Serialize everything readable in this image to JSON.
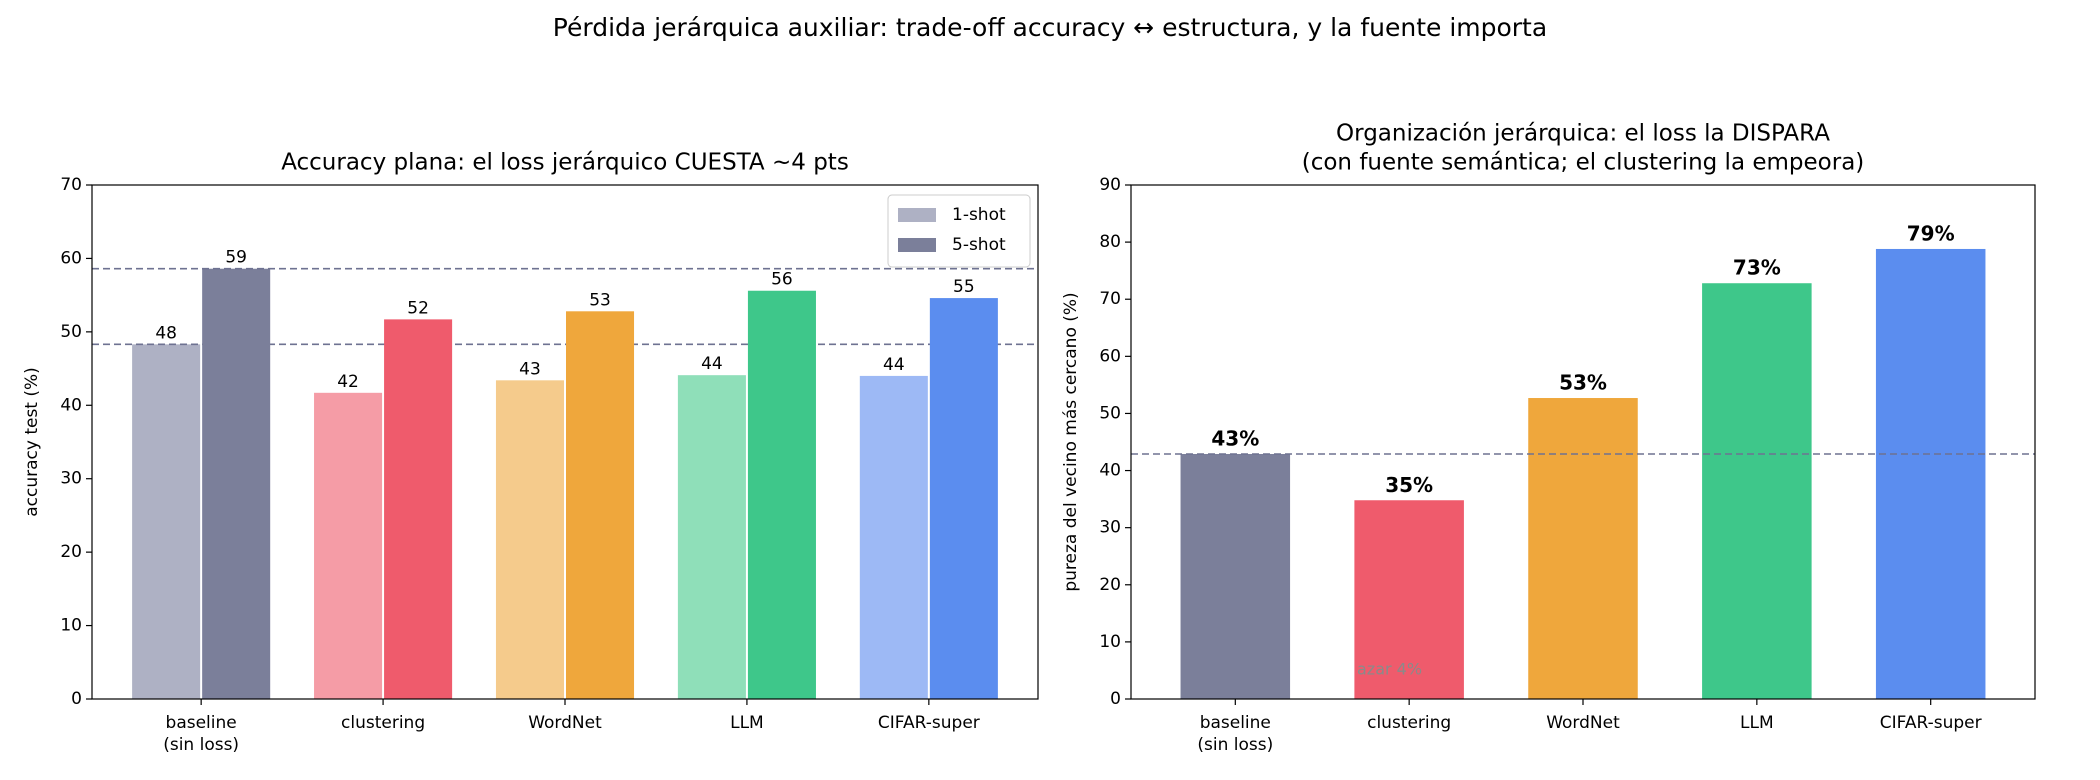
{
  "title": "Pérdida jerárquica auxiliar: trade-off accuracy ↔ estructura, y la fuente importa",
  "chart_data": [
    {
      "type": "grouped_bar",
      "title": [
        "Accuracy plana: el loss jerárquico CUESTA ~4 pts"
      ],
      "ylabel": "accuracy test (%)",
      "categories": [
        [
          "baseline",
          "(sin loss)"
        ],
        [
          "clustering"
        ],
        [
          "WordNet"
        ],
        [
          "LLM"
        ],
        [
          "CIFAR-super"
        ]
      ],
      "series": [
        {
          "name": "1-shot",
          "color": "#aeb1c4",
          "colors": [
            "#aeb1c4",
            "#f59ca6",
            "#f5cb8c",
            "#8fdfb9",
            "#9db9f5"
          ],
          "values": [
            48.3,
            41.7,
            43.4,
            44.1,
            44.0
          ],
          "value_labels": [
            "48",
            "42",
            "43",
            "44",
            "44"
          ]
        },
        {
          "name": "5-shot",
          "color": "#7b7f9a",
          "colors": [
            "#7b7f9a",
            "#ef5b6c",
            "#efa73c",
            "#3ec78a",
            "#5b8def"
          ],
          "values": [
            58.6,
            51.7,
            52.8,
            55.6,
            54.6
          ],
          "value_labels": [
            "59",
            "52",
            "53",
            "56",
            "55"
          ]
        }
      ],
      "ylim": [
        0,
        70
      ],
      "yticks": [
        0,
        10,
        20,
        30,
        40,
        50,
        60,
        70
      ],
      "legend": "upper right",
      "baseline_reference": true
    },
    {
      "type": "bar",
      "title": [
        "Organización jerárquica: el loss la DISPARA",
        "(con fuente semántica; el clustering la empeora)"
      ],
      "ylabel": "pureza del vecino más cercano (%)",
      "categories": [
        [
          "baseline",
          "(sin loss)"
        ],
        [
          "clustering"
        ],
        [
          "WordNet"
        ],
        [
          "LLM"
        ],
        [
          "CIFAR-super"
        ]
      ],
      "values": [
        42.9,
        34.8,
        52.7,
        72.8,
        78.8
      ],
      "value_labels": [
        "43%",
        "35%",
        "53%",
        "73%",
        "79%"
      ],
      "colors": [
        "#7b7f9a",
        "#ef5b6c",
        "#efa73c",
        "#3ec78a",
        "#5b8def"
      ],
      "ylim": [
        0,
        90
      ],
      "yticks": [
        0,
        10,
        20,
        30,
        40,
        50,
        60,
        70,
        80,
        90
      ],
      "annotation": "azar 4%",
      "baseline_reference": true
    }
  ]
}
